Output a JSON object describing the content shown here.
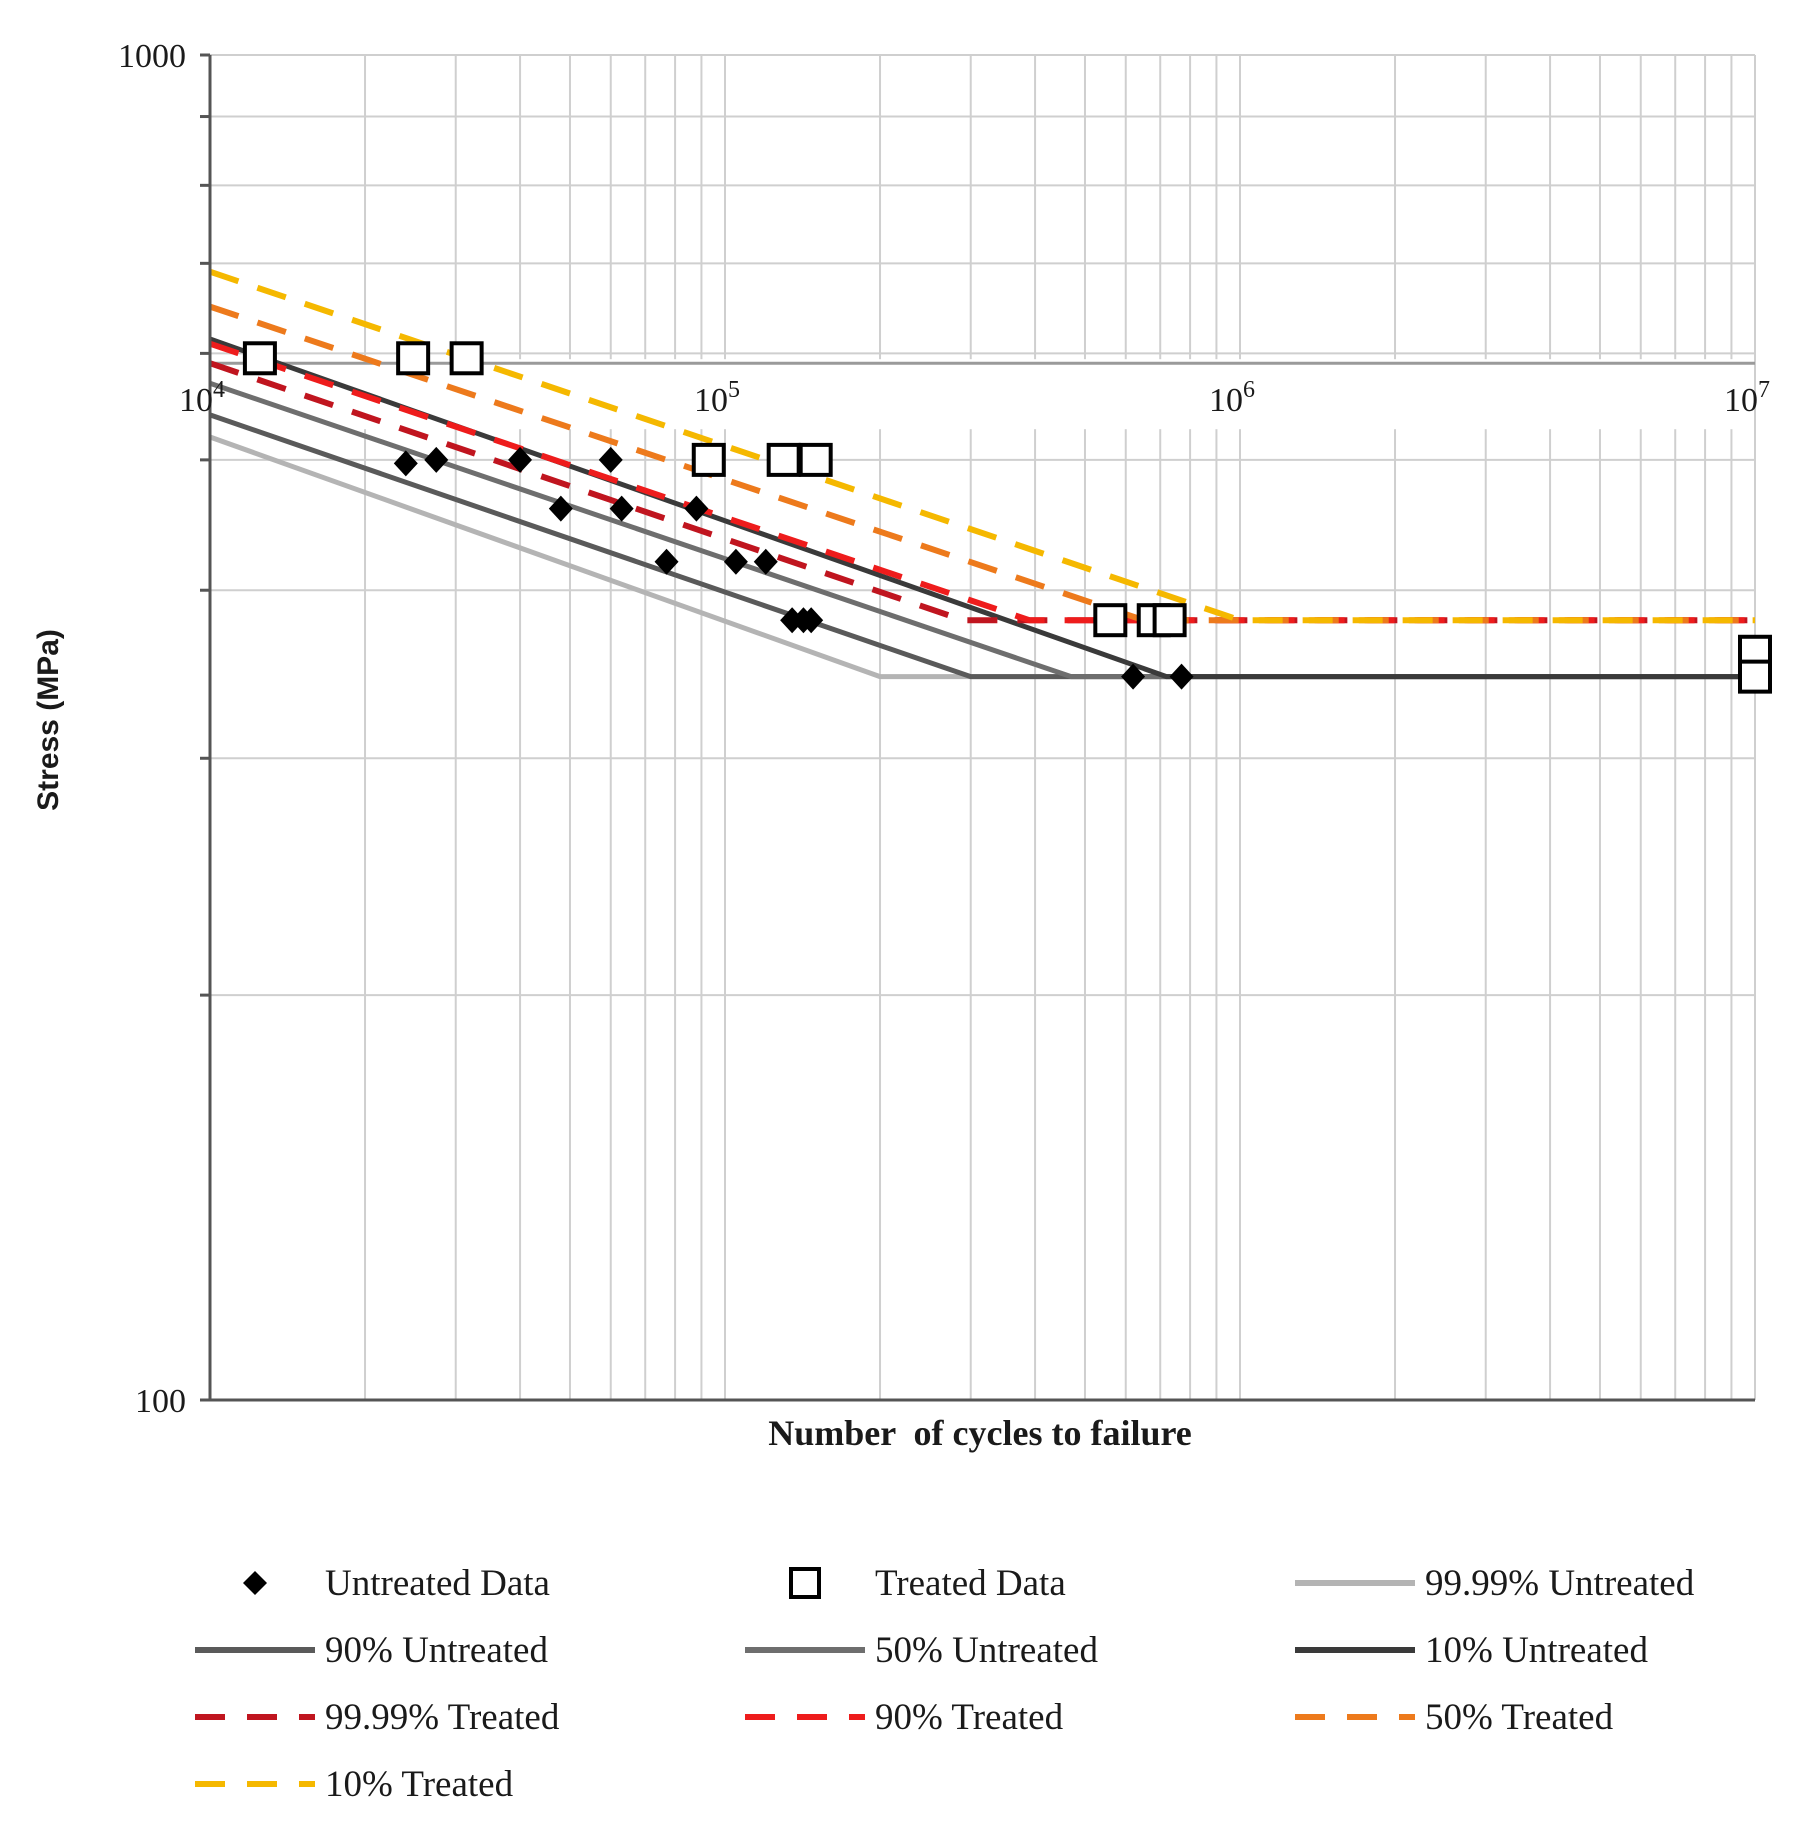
{
  "chart_data": {
    "type": "scatter",
    "title": "",
    "xlabel": "Number  of cycles to failure",
    "ylabel": "Stress (MPa)",
    "x_scale": "log",
    "y_scale": "log",
    "xlim": [
      10000,
      10000000
    ],
    "ylim": [
      100,
      1000
    ],
    "grid": true,
    "x_tick_labels": [
      {
        "value": 10000,
        "base": "10",
        "exp": "4"
      },
      {
        "value": 100000,
        "base": "10",
        "exp": "5"
      },
      {
        "value": 1000000,
        "base": "10",
        "exp": "6"
      },
      {
        "value": 10000000,
        "base": "10",
        "exp": "7"
      }
    ],
    "y_tick_labels": [
      {
        "value": 1000,
        "label": "1000"
      },
      {
        "value": 100,
        "label": "100"
      }
    ],
    "series": [
      {
        "name": "Untreated Data",
        "kind": "marker",
        "marker": "diamond",
        "color": "#000000",
        "points": [
          [
            24000,
            497
          ],
          [
            27500,
            500
          ],
          [
            40000,
            500
          ],
          [
            60000,
            500
          ],
          [
            48000,
            460
          ],
          [
            63000,
            460
          ],
          [
            88000,
            460
          ],
          [
            77000,
            420
          ],
          [
            105000,
            420
          ],
          [
            120000,
            420
          ],
          [
            135000,
            380
          ],
          [
            142000,
            380
          ],
          [
            147000,
            380
          ],
          [
            620000,
            345
          ],
          [
            770000,
            345
          ]
        ]
      },
      {
        "name": "Treated Data",
        "kind": "marker",
        "marker": "square",
        "color": "#000000",
        "points": [
          [
            12500,
            595
          ],
          [
            24800,
            595
          ],
          [
            31500,
            595
          ],
          [
            93000,
            500
          ],
          [
            130000,
            500
          ],
          [
            150000,
            500
          ],
          [
            560000,
            380
          ],
          [
            680000,
            380
          ],
          [
            730000,
            380
          ],
          [
            10000000,
            360
          ],
          [
            10000000,
            345
          ]
        ]
      },
      {
        "name": "99.99% Untreated",
        "kind": "line",
        "style": "solid",
        "color": "#b4b4b4",
        "points": [
          [
            10000,
            520
          ],
          [
            200000,
            345
          ],
          [
            10000000,
            345
          ]
        ]
      },
      {
        "name": "90% Untreated",
        "kind": "line",
        "style": "solid",
        "color": "#5a5a5a",
        "points": [
          [
            10000,
            540
          ],
          [
            300000,
            345
          ],
          [
            10000000,
            345
          ]
        ]
      },
      {
        "name": "50% Untreated",
        "kind": "line",
        "style": "solid",
        "color": "#6e6e6e",
        "points": [
          [
            10000,
            570
          ],
          [
            470000,
            345
          ],
          [
            10000000,
            345
          ]
        ]
      },
      {
        "name": "10% Untreated",
        "kind": "line",
        "style": "solid",
        "color": "#3a3a3a",
        "points": [
          [
            10000,
            615
          ],
          [
            720000,
            345
          ],
          [
            10000000,
            345
          ]
        ]
      },
      {
        "name": "99.99% Treated",
        "kind": "line",
        "style": "dashed",
        "color": "#c0151f",
        "points": [
          [
            10000,
            590
          ],
          [
            290000,
            380
          ],
          [
            10000000,
            380
          ]
        ]
      },
      {
        "name": "90% Treated",
        "kind": "line",
        "style": "dashed",
        "color": "#ee1c1c",
        "points": [
          [
            10000,
            610
          ],
          [
            390000,
            380
          ],
          [
            10000000,
            380
          ]
        ]
      },
      {
        "name": "50% Treated",
        "kind": "line",
        "style": "dashed",
        "color": "#ed7a1c",
        "points": [
          [
            10000,
            650
          ],
          [
            650000,
            380
          ],
          [
            10000000,
            380
          ]
        ]
      },
      {
        "name": "10% Treated",
        "kind": "line",
        "style": "dashed",
        "color": "#f5b800",
        "points": [
          [
            10000,
            690
          ],
          [
            1000000,
            380
          ],
          [
            10000000,
            380
          ]
        ]
      }
    ],
    "legend": {
      "position": "bottom",
      "entries": [
        {
          "label": "Untreated Data",
          "symbol": "diamond",
          "color": "#000000"
        },
        {
          "label": "Treated Data",
          "symbol": "square",
          "color": "#000000"
        },
        {
          "label": "99.99% Untreated",
          "symbol": "solid",
          "color": "#b4b4b4"
        },
        {
          "label": "90% Untreated",
          "symbol": "solid",
          "color": "#5a5a5a"
        },
        {
          "label": "50% Untreated",
          "symbol": "solid",
          "color": "#6e6e6e"
        },
        {
          "label": "10% Untreated",
          "symbol": "solid",
          "color": "#3a3a3a"
        },
        {
          "label": "99.99% Treated",
          "symbol": "dashed",
          "color": "#c0151f"
        },
        {
          "label": "90% Treated",
          "symbol": "dashed",
          "color": "#ee1c1c"
        },
        {
          "label": "50% Treated",
          "symbol": "dashed",
          "color": "#ed7a1c"
        },
        {
          "label": "10% Treated",
          "symbol": "dashed",
          "color": "#f5b800"
        }
      ]
    }
  }
}
